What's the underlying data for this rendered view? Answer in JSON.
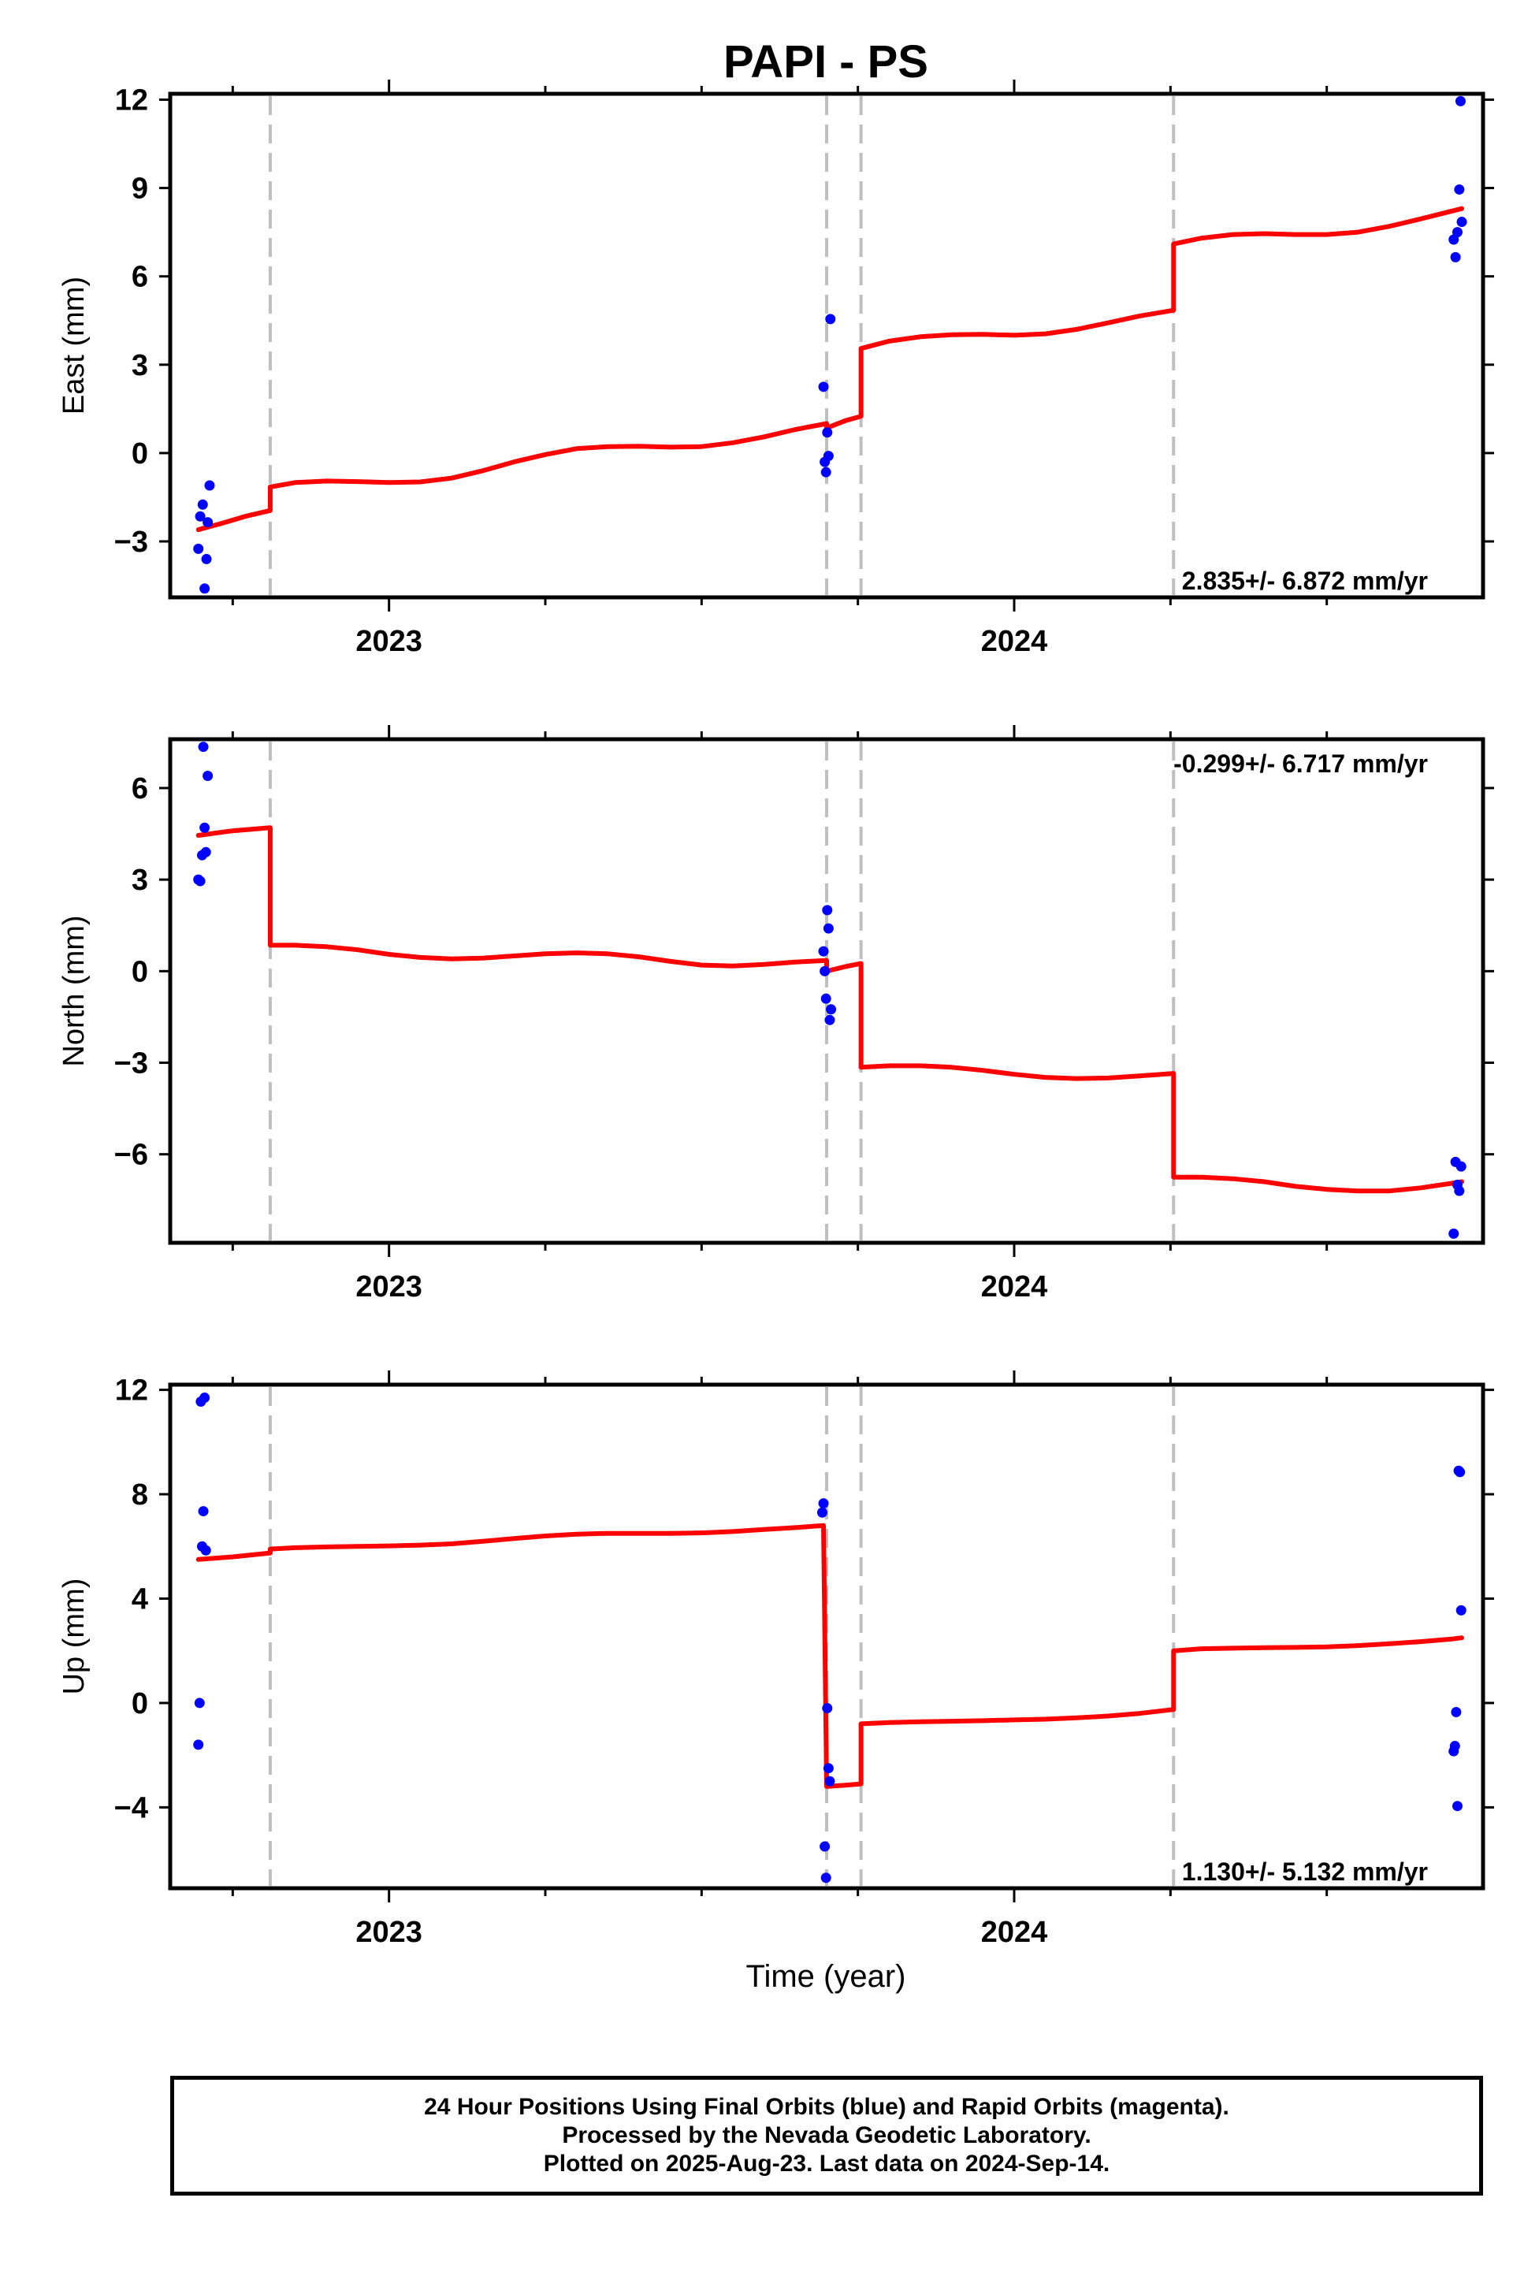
{
  "title": "PAPI - PS",
  "colors": {
    "model": "#ff0000",
    "final_orbits": "#0000ff",
    "event_line": "#bfbfbf",
    "frame": "#000000"
  },
  "xlabel": "Time (year)",
  "footer": {
    "line1": "24 Hour Positions Using Final Orbits (blue) and Rapid Orbits (magenta).",
    "line2": "Processed by the Nevada Geodetic Laboratory.",
    "line3": "Plotted on 2025-Aug-23. Last data on 2024-Sep-14."
  },
  "chart_data": [
    {
      "type": "scatter",
      "ylabel": "East (mm)",
      "rate": "2.835+/- 6.872 mm/yr",
      "rate_position": "bottom-right",
      "xlim": [
        2022.65,
        2024.75
      ],
      "ylim": [
        -4.9,
        12.2
      ],
      "xticks": [
        2023,
        2024
      ],
      "yticks": [
        -3,
        0,
        3,
        6,
        9,
        12
      ],
      "event_lines": [
        2022.81,
        2023.7,
        2023.755,
        2024.255
      ],
      "points": [
        [
          2022.695,
          -3.25
        ],
        [
          2022.698,
          -2.15
        ],
        [
          2022.702,
          -1.75
        ],
        [
          2022.705,
          -4.6
        ],
        [
          2022.708,
          -3.6
        ],
        [
          2022.71,
          -2.35
        ],
        [
          2022.713,
          -1.1
        ],
        [
          2023.695,
          2.25
        ],
        [
          2023.697,
          -0.3
        ],
        [
          2023.699,
          -0.65
        ],
        [
          2023.701,
          0.7
        ],
        [
          2023.703,
          -0.1
        ],
        [
          2023.706,
          4.55
        ],
        [
          2024.703,
          7.25
        ],
        [
          2024.706,
          6.65
        ],
        [
          2024.709,
          7.5
        ],
        [
          2024.712,
          8.95
        ],
        [
          2024.714,
          11.95
        ],
        [
          2024.716,
          7.85
        ]
      ],
      "model": [
        {
          "x": [
            2022.695,
            2022.73,
            2022.77,
            2022.81
          ],
          "y": [
            -2.6,
            -2.4,
            -2.15,
            -1.95
          ]
        },
        {
          "x": [
            2022.81,
            2022.85,
            2022.9,
            2022.95,
            2023.0,
            2023.05,
            2023.1,
            2023.15,
            2023.2,
            2023.25,
            2023.3,
            2023.35,
            2023.4,
            2023.45,
            2023.5,
            2023.55,
            2023.6,
            2023.65,
            2023.7
          ],
          "y": [
            -1.15,
            -1.0,
            -0.95,
            -0.97,
            -1.0,
            -0.98,
            -0.85,
            -0.6,
            -0.3,
            -0.05,
            0.15,
            0.22,
            0.23,
            0.2,
            0.22,
            0.35,
            0.55,
            0.8,
            1.0
          ]
        },
        {
          "x": [
            2023.7,
            2023.73,
            2023.755
          ],
          "y": [
            0.85,
            1.1,
            1.25
          ]
        },
        {
          "x": [
            2023.755,
            2023.8,
            2023.85,
            2023.9,
            2023.95,
            2024.0,
            2024.05,
            2024.1,
            2024.15,
            2024.2,
            2024.255
          ],
          "y": [
            3.55,
            3.8,
            3.95,
            4.02,
            4.03,
            4.0,
            4.05,
            4.2,
            4.42,
            4.65,
            4.85
          ]
        },
        {
          "x": [
            2024.255,
            2024.3,
            2024.35,
            2024.4,
            2024.45,
            2024.5,
            2024.55,
            2024.6,
            2024.65,
            2024.716
          ],
          "y": [
            7.1,
            7.3,
            7.42,
            7.45,
            7.42,
            7.42,
            7.5,
            7.7,
            7.95,
            8.3
          ]
        }
      ]
    },
    {
      "type": "scatter",
      "ylabel": "North (mm)",
      "rate": "-0.299+/- 6.717 mm/yr",
      "rate_position": "top-right",
      "xlim": [
        2022.65,
        2024.75
      ],
      "ylim": [
        -8.9,
        7.6
      ],
      "xticks": [
        2023,
        2024
      ],
      "yticks": [
        -6,
        -3,
        0,
        3,
        6
      ],
      "event_lines": [
        2022.81,
        2023.7,
        2023.755,
        2024.255
      ],
      "points": [
        [
          2022.695,
          3.0
        ],
        [
          2022.698,
          2.95
        ],
        [
          2022.701,
          3.8
        ],
        [
          2022.703,
          7.35
        ],
        [
          2022.705,
          4.7
        ],
        [
          2022.707,
          3.9
        ],
        [
          2022.71,
          6.4
        ],
        [
          2023.695,
          0.65
        ],
        [
          2023.697,
          0.0
        ],
        [
          2023.699,
          -0.9
        ],
        [
          2023.701,
          2.0
        ],
        [
          2023.703,
          1.4
        ],
        [
          2023.705,
          -1.6
        ],
        [
          2023.707,
          -1.25
        ],
        [
          2024.703,
          -8.6
        ],
        [
          2024.706,
          -6.25
        ],
        [
          2024.709,
          -7.0
        ],
        [
          2024.712,
          -7.2
        ],
        [
          2024.715,
          -6.4
        ]
      ],
      "model": [
        {
          "x": [
            2022.695,
            2022.75,
            2022.81
          ],
          "y": [
            4.45,
            4.6,
            4.7
          ]
        },
        {
          "x": [
            2022.81,
            2022.85,
            2022.9,
            2022.95,
            2023.0,
            2023.05,
            2023.1,
            2023.15,
            2023.2,
            2023.25,
            2023.3,
            2023.35,
            2023.4,
            2023.45,
            2023.5,
            2023.55,
            2023.6,
            2023.65,
            2023.7
          ],
          "y": [
            0.85,
            0.85,
            0.8,
            0.7,
            0.55,
            0.45,
            0.4,
            0.43,
            0.5,
            0.57,
            0.6,
            0.57,
            0.47,
            0.32,
            0.2,
            0.17,
            0.22,
            0.3,
            0.35
          ]
        },
        {
          "x": [
            2023.7,
            2023.73,
            2023.755
          ],
          "y": [
            0.0,
            0.15,
            0.25
          ]
        },
        {
          "x": [
            2023.755,
            2023.8,
            2023.85,
            2023.9,
            2023.95,
            2024.0,
            2024.05,
            2024.1,
            2024.15,
            2024.2,
            2024.255
          ],
          "y": [
            -3.15,
            -3.1,
            -3.1,
            -3.15,
            -3.25,
            -3.38,
            -3.48,
            -3.52,
            -3.5,
            -3.43,
            -3.35
          ]
        },
        {
          "x": [
            2024.255,
            2024.3,
            2024.35,
            2024.4,
            2024.45,
            2024.5,
            2024.55,
            2024.6,
            2024.65,
            2024.7,
            2024.716
          ],
          "y": [
            -6.75,
            -6.75,
            -6.8,
            -6.9,
            -7.05,
            -7.15,
            -7.2,
            -7.2,
            -7.1,
            -6.95,
            -6.9
          ]
        }
      ]
    },
    {
      "type": "scatter",
      "ylabel": "Up (mm)",
      "rate": "1.130+/- 5.132 mm/yr",
      "rate_position": "bottom-right",
      "xlim": [
        2022.65,
        2024.75
      ],
      "ylim": [
        -7.1,
        12.2
      ],
      "xticks": [
        2023,
        2024
      ],
      "yticks": [
        -4,
        0,
        4,
        8,
        12
      ],
      "event_lines": [
        2022.81,
        2023.7,
        2023.755,
        2024.255
      ],
      "points": [
        [
          2022.695,
          -1.6
        ],
        [
          2022.697,
          0.0
        ],
        [
          2022.699,
          11.55
        ],
        [
          2022.701,
          6.0
        ],
        [
          2022.703,
          7.35
        ],
        [
          2022.705,
          11.7
        ],
        [
          2022.707,
          5.85
        ],
        [
          2023.693,
          7.3
        ],
        [
          2023.695,
          7.65
        ],
        [
          2023.697,
          -5.5
        ],
        [
          2023.699,
          -6.7
        ],
        [
          2023.701,
          -0.2
        ],
        [
          2023.703,
          -2.5
        ],
        [
          2023.705,
          -3.0
        ],
        [
          2024.703,
          -1.85
        ],
        [
          2024.705,
          -1.65
        ],
        [
          2024.707,
          -0.35
        ],
        [
          2024.709,
          -3.95
        ],
        [
          2024.711,
          8.9
        ],
        [
          2024.713,
          8.85
        ],
        [
          2024.715,
          3.55
        ]
      ],
      "model": [
        {
          "x": [
            2022.695,
            2022.75,
            2022.81
          ],
          "y": [
            5.5,
            5.6,
            5.75
          ]
        },
        {
          "x": [
            2022.81,
            2022.85,
            2022.9,
            2022.95,
            2023.0,
            2023.05,
            2023.1,
            2023.15,
            2023.2,
            2023.25,
            2023.3,
            2023.35,
            2023.4,
            2023.45,
            2023.5,
            2023.55,
            2023.6,
            2023.65,
            2023.695
          ],
          "y": [
            5.9,
            5.95,
            5.98,
            6.0,
            6.02,
            6.05,
            6.1,
            6.2,
            6.3,
            6.4,
            6.47,
            6.5,
            6.5,
            6.5,
            6.52,
            6.57,
            6.65,
            6.72,
            6.8
          ]
        },
        {
          "x": [
            2023.7,
            2023.73,
            2023.755
          ],
          "y": [
            -3.2,
            -3.15,
            -3.1
          ]
        },
        {
          "x": [
            2023.755,
            2023.8,
            2023.85,
            2023.9,
            2023.95,
            2024.0,
            2024.05,
            2024.1,
            2024.15,
            2024.2,
            2024.255
          ],
          "y": [
            -0.8,
            -0.75,
            -0.72,
            -0.7,
            -0.68,
            -0.65,
            -0.62,
            -0.57,
            -0.5,
            -0.4,
            -0.25
          ]
        },
        {
          "x": [
            2024.255,
            2024.3,
            2024.35,
            2024.4,
            2024.45,
            2024.5,
            2024.55,
            2024.6,
            2024.65,
            2024.7,
            2024.716
          ],
          "y": [
            2.0,
            2.08,
            2.1,
            2.12,
            2.13,
            2.15,
            2.2,
            2.27,
            2.35,
            2.45,
            2.5
          ]
        }
      ]
    }
  ]
}
